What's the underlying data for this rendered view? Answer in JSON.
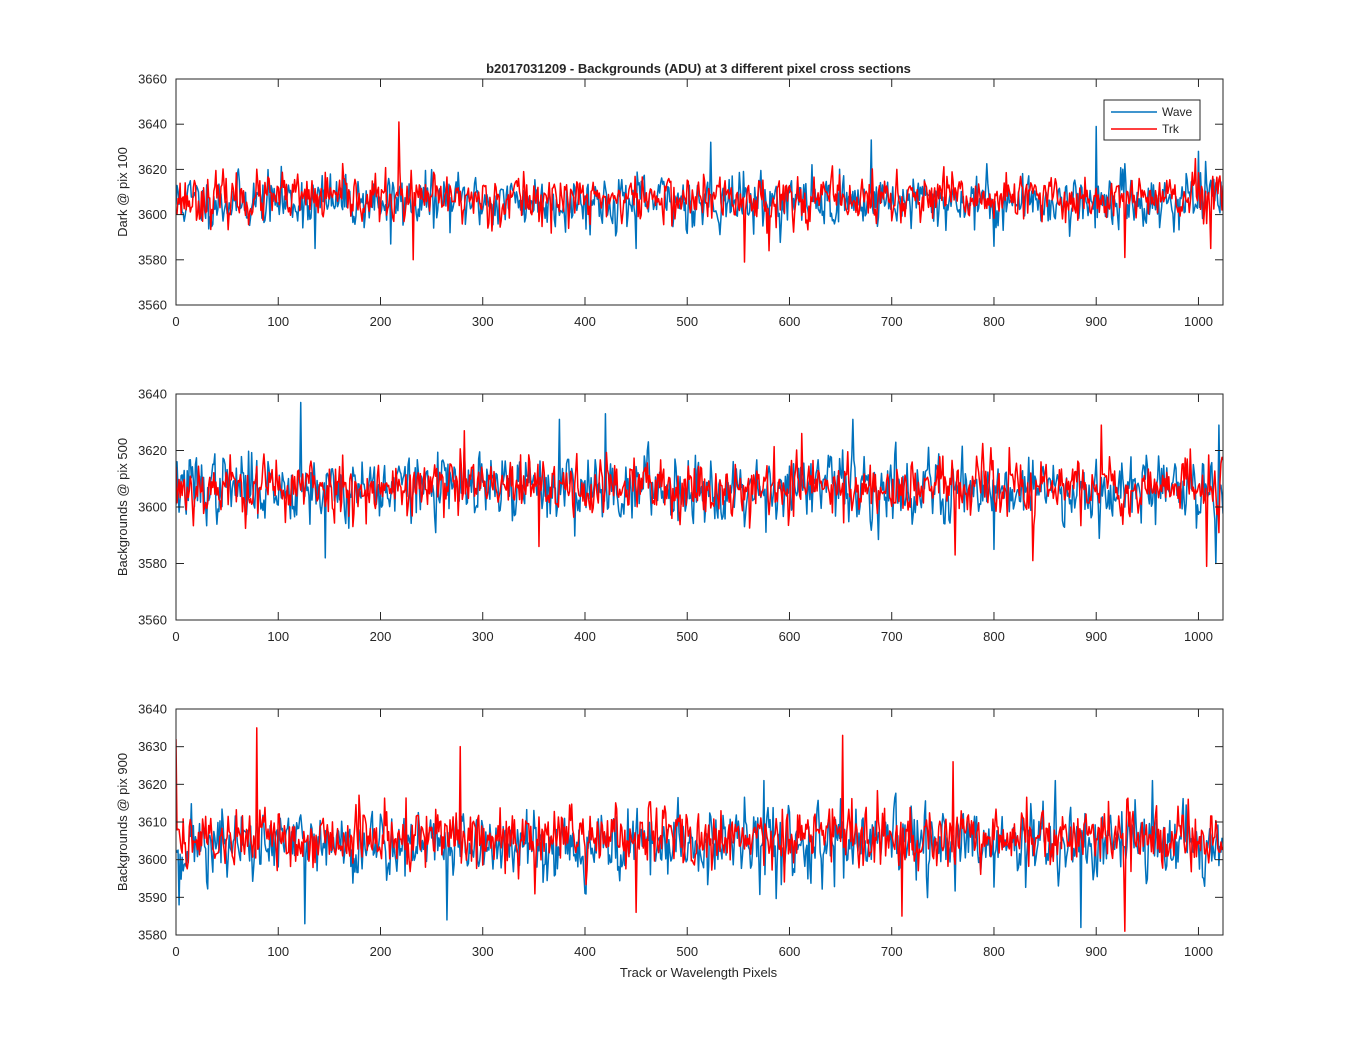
{
  "figure": {
    "title": "b2017031209 - Backgrounds (ADU) at 3 different pixel cross sections",
    "xlabel": "Track or Wavelength Pixels"
  },
  "legend": {
    "placement": "top-right of first panel",
    "entries": [
      {
        "label": "Wave",
        "color": "#0072BD"
      },
      {
        "label": "Trk",
        "color": "#FF0000"
      }
    ]
  },
  "colors": {
    "wave": "#0072BD",
    "trk": "#FF0000",
    "axes": "#262626"
  },
  "chart_data": [
    {
      "type": "line",
      "title": "b2017031209 - Backgrounds (ADU) at 3 different pixel cross sections",
      "ylabel": "Dark @ pix 100",
      "xlabel": "",
      "xlim": [
        0,
        1024
      ],
      "ylim": [
        3560,
        3660
      ],
      "xticks": [
        0,
        100,
        200,
        300,
        400,
        500,
        600,
        700,
        800,
        900,
        1000
      ],
      "yticks": [
        3560,
        3580,
        3600,
        3620,
        3640,
        3660
      ],
      "grid": false,
      "series": [
        {
          "name": "Wave",
          "color": "#0072BD",
          "mean": 3606,
          "amplitude": 10,
          "seed": 11,
          "spikes": [
            [
              523,
              3632
            ],
            [
              680,
              3633
            ],
            [
              900,
              3639
            ],
            [
              1000,
              3628
            ],
            [
              136,
              3585
            ],
            [
              210,
              3587
            ],
            [
              450,
              3585
            ],
            [
              800,
              3586
            ]
          ]
        },
        {
          "name": "Trk",
          "color": "#FF0000",
          "mean": 3607,
          "amplitude": 9,
          "seed": 23,
          "spikes": [
            [
              218,
              3641
            ],
            [
              232,
              3580
            ],
            [
              556,
              3579
            ],
            [
              580,
              3584
            ],
            [
              928,
              3581
            ],
            [
              1012,
              3585
            ],
            [
              340,
              3619
            ],
            [
              705,
              3620
            ]
          ]
        }
      ]
    },
    {
      "type": "line",
      "ylabel": "Backgrounds @ pix 500",
      "xlabel": "",
      "xlim": [
        0,
        1024
      ],
      "ylim": [
        3560,
        3640
      ],
      "xticks": [
        0,
        100,
        200,
        300,
        400,
        500,
        600,
        700,
        800,
        900,
        1000
      ],
      "yticks": [
        3560,
        3580,
        3600,
        3620,
        3640
      ],
      "grid": false,
      "series": [
        {
          "name": "Wave",
          "color": "#0072BD",
          "mean": 3607,
          "amplitude": 10,
          "seed": 37,
          "spikes": [
            [
              122,
              3637
            ],
            [
              375,
              3631
            ],
            [
              420,
              3633
            ],
            [
              662,
              3631
            ],
            [
              1020,
              3629
            ],
            [
              146,
              3582
            ],
            [
              800,
              3585
            ],
            [
              1017,
              3580
            ]
          ]
        },
        {
          "name": "Trk",
          "color": "#FF0000",
          "mean": 3607,
          "amplitude": 9,
          "seed": 53,
          "spikes": [
            [
              282,
              3627
            ],
            [
              612,
              3626
            ],
            [
              905,
              3629
            ],
            [
              1008,
              3579
            ],
            [
              355,
              3586
            ],
            [
              838,
              3581
            ],
            [
              762,
              3583
            ]
          ]
        }
      ]
    },
    {
      "type": "line",
      "ylabel": "Backgrounds @ pix 900",
      "xlabel": "Track or Wavelength Pixels",
      "xlim": [
        0,
        1024
      ],
      "ylim": [
        3580,
        3640
      ],
      "xticks": [
        0,
        100,
        200,
        300,
        400,
        500,
        600,
        700,
        800,
        900,
        1000
      ],
      "yticks": [
        3580,
        3590,
        3600,
        3610,
        3620,
        3630,
        3640
      ],
      "grid": false,
      "series": [
        {
          "name": "Wave",
          "color": "#0072BD",
          "mean": 3604,
          "amplitude": 8,
          "seed": 71,
          "spikes": [
            [
              3,
              3588
            ],
            [
              126,
              3583
            ],
            [
              265,
              3584
            ],
            [
              885,
              3582
            ],
            [
              575,
              3621
            ],
            [
              860,
              3621
            ],
            [
              955,
              3621
            ]
          ]
        },
        {
          "name": "Trk",
          "color": "#FF0000",
          "mean": 3606,
          "amplitude": 7,
          "seed": 89,
          "spikes": [
            [
              0,
              3632
            ],
            [
              79,
              3635
            ],
            [
              278,
              3630
            ],
            [
              652,
              3633
            ],
            [
              928,
              3581
            ],
            [
              710,
              3585
            ],
            [
              450,
              3586
            ],
            [
              760,
              3626
            ]
          ]
        }
      ]
    }
  ]
}
